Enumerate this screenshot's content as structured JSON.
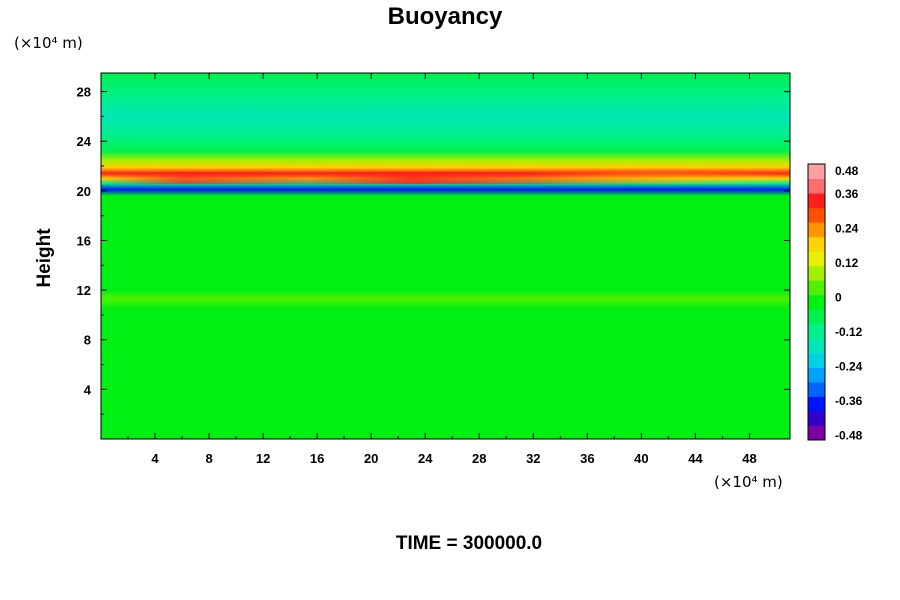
{
  "chart_data": {
    "type": "heatmap",
    "title": "Buoyancy",
    "ylabel": "Height",
    "xlabel": "",
    "x_unit": "(×10⁴ m)",
    "y_unit": "(×10⁴ m)",
    "footer": "TIME = 300000.0",
    "xlim": [
      0,
      51
    ],
    "ylim": [
      0,
      29.5
    ],
    "x_ticks": [
      "4",
      "8",
      "12",
      "16",
      "20",
      "24",
      "28",
      "32",
      "36",
      "40",
      "44",
      "48"
    ],
    "y_ticks": [
      "4",
      "8",
      "12",
      "16",
      "20",
      "24",
      "28"
    ],
    "colorbar": {
      "min": -0.48,
      "max": 0.48,
      "ticks": [
        "0.48",
        "0.36",
        "0.24",
        "0.12",
        "0",
        "-0.12",
        "-0.24",
        "-0.36",
        "-0.48"
      ],
      "colors": [
        "#7d00a0",
        "#3200c8",
        "#0014ff",
        "#0064ff",
        "#00a0ff",
        "#00d2e6",
        "#00e6b4",
        "#00f08c",
        "#00f050",
        "#00f014",
        "#50f000",
        "#a0f000",
        "#e6f000",
        "#ffd200",
        "#ff9600",
        "#ff5000",
        "#ff1e1e",
        "#ff6e6e",
        "#ffa0a0"
      ]
    },
    "vertical_profile": [
      {
        "height": 0,
        "value": 0.0
      },
      {
        "height": 10.5,
        "value": 0.0
      },
      {
        "height": 11.3,
        "value": 0.05
      },
      {
        "height": 12.0,
        "value": 0.0
      },
      {
        "height": 19.6,
        "value": 0.0
      },
      {
        "height": 20.1,
        "value": -0.36
      },
      {
        "height": 20.6,
        "value": -0.12
      },
      {
        "height": 21.0,
        "value": 0.2
      },
      {
        "height": 21.4,
        "value": 0.36
      },
      {
        "height": 21.9,
        "value": 0.2
      },
      {
        "height": 22.5,
        "value": 0.1
      },
      {
        "height": 23.2,
        "value": -0.04
      },
      {
        "height": 24.5,
        "value": -0.08
      },
      {
        "height": 26.0,
        "value": -0.14
      },
      {
        "height": 27.5,
        "value": -0.08
      },
      {
        "height": 29.5,
        "value": -0.04
      }
    ]
  }
}
